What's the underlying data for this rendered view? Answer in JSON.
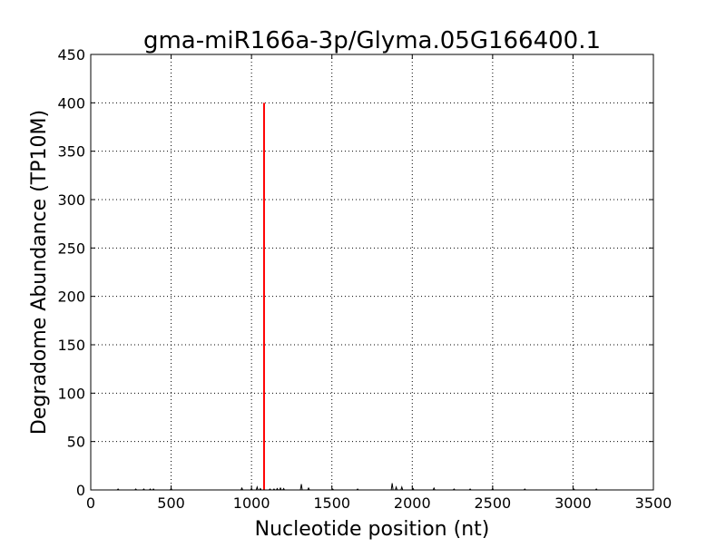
{
  "chart_data": {
    "type": "line",
    "title": "gma-miR166a-3p/Glyma.05G166400.1",
    "xlabel": "Nucleotide position (nt)",
    "ylabel": "Degradome Abundance (TP10M)",
    "xlim": [
      0,
      3500
    ],
    "ylim": [
      0,
      450
    ],
    "xticks": [
      0,
      500,
      1000,
      1500,
      2000,
      2500,
      3000,
      3500
    ],
    "yticks": [
      0,
      50,
      100,
      150,
      200,
      250,
      300,
      350,
      400,
      450
    ],
    "grid": true,
    "colors": {
      "background": "#000000",
      "highlight": "#ff0000"
    },
    "background_series": {
      "x": [
        170,
        280,
        330,
        370,
        390,
        500,
        940,
        1000,
        1035,
        1055,
        1115,
        1140,
        1160,
        1180,
        1200,
        1310,
        1355,
        1505,
        1660,
        1875,
        1900,
        1935,
        2005,
        2135,
        2260,
        2360,
        2500,
        2700,
        3005,
        3145
      ],
      "y": [
        1,
        1,
        1,
        1,
        1,
        1.5,
        2,
        1.5,
        3,
        1.5,
        1,
        1,
        1.5,
        2,
        1.5,
        6,
        2,
        1,
        1,
        7,
        3,
        3,
        1.5,
        2,
        1,
        1,
        1.5,
        1,
        1,
        1
      ]
    },
    "highlight_series": {
      "x": [
        1078
      ],
      "y": [
        400
      ]
    }
  }
}
